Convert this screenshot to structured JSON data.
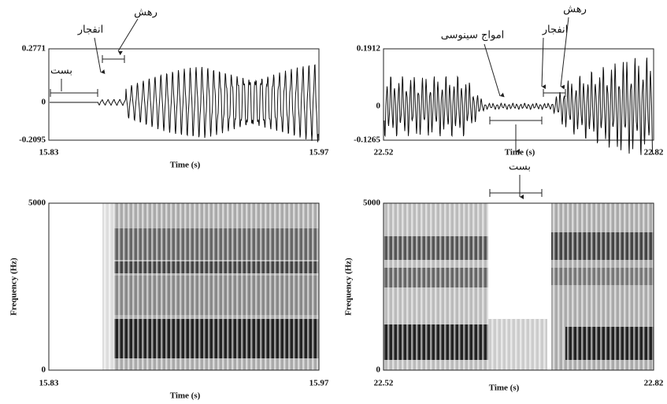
{
  "panels": [
    {
      "y_top": "0.2771",
      "y_zero": "0",
      "y_bottom": "-0.2095",
      "x_left": "15.83",
      "x_right": "15.97",
      "x_label": "Time (s)"
    },
    {
      "y_top": "0.1912",
      "y_zero": "0",
      "y_bottom": "-0.1265",
      "x_left": "22.52",
      "x_right": "22.82",
      "x_label": "Time (s)"
    },
    {
      "y_top": "5000",
      "y_bottom": "0",
      "y_label": "Frequency (Hz)",
      "x_left": "15.83",
      "x_right": "15.97",
      "x_label": "Time (s)"
    },
    {
      "y_top": "5000",
      "y_bottom": "0",
      "y_label": "Frequency (Hz)",
      "x_left": "22.52",
      "x_right": "22.82",
      "x_label": "Time (s)"
    }
  ],
  "annotations": {
    "left_release": "رهش",
    "left_burst": "انفجار",
    "left_closure": "بست",
    "right_release": "رهش",
    "right_burst": "انفجار",
    "right_sine": "امواج سینوسی",
    "right_closure": "بست"
  }
}
